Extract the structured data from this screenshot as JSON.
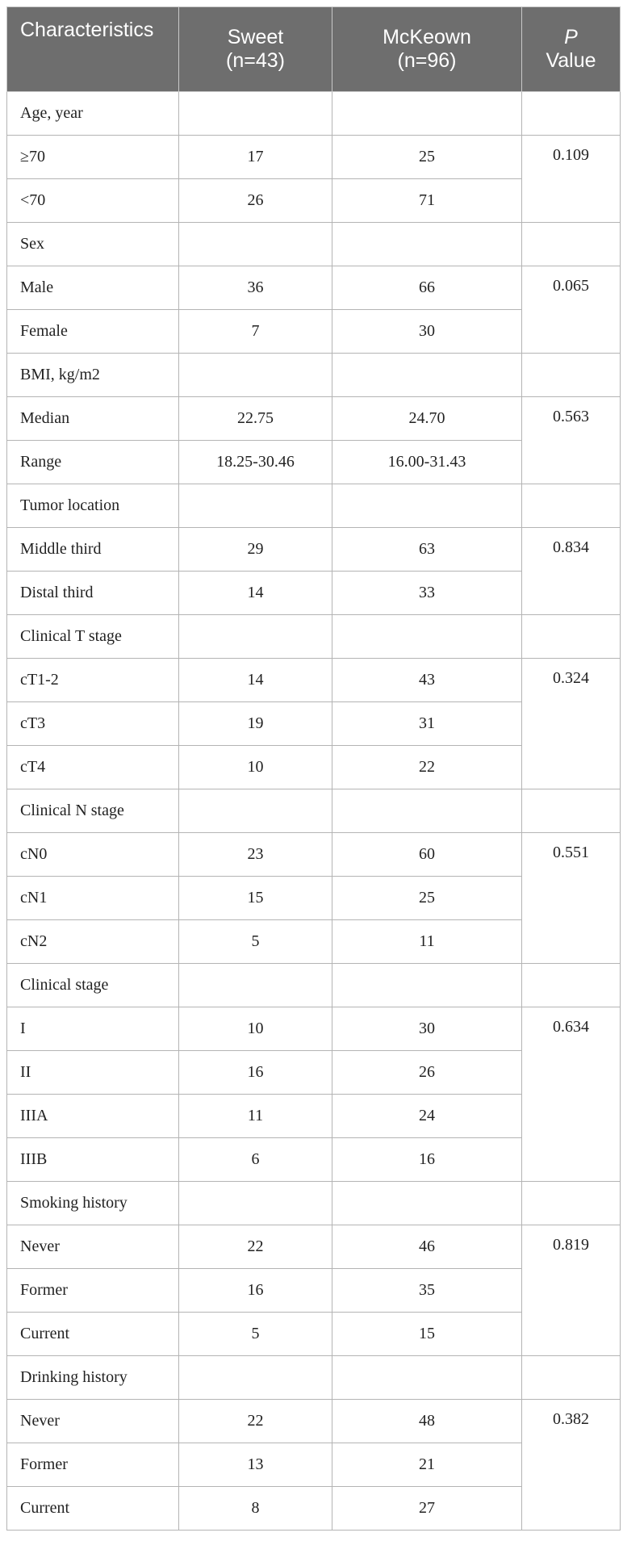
{
  "header": {
    "characteristics": "Characteristics",
    "sweet_line1": "Sweet",
    "sweet_line2": "(n=43)",
    "mckeown_line1": "McKeown",
    "mckeown_line2": "(n=96)",
    "p_letter": "P",
    "p_value": "Value"
  },
  "groups": [
    {
      "title": "Age, year",
      "p": "0.109",
      "rows": [
        {
          "label": "≥70",
          "sweet": "17",
          "mckeown": "25"
        },
        {
          "label": "<70",
          "sweet": "26",
          "mckeown": "71"
        }
      ]
    },
    {
      "title": "Sex",
      "p": "0.065",
      "rows": [
        {
          "label": "Male",
          "sweet": "36",
          "mckeown": "66"
        },
        {
          "label": "Female",
          "sweet": "7",
          "mckeown": "30"
        }
      ]
    },
    {
      "title": "BMI, kg/m2",
      "p": "0.563",
      "rows": [
        {
          "label": "Median",
          "sweet": "22.75",
          "mckeown": "24.70"
        },
        {
          "label": "Range",
          "sweet": "18.25-30.46",
          "mckeown": "16.00-31.43"
        }
      ]
    },
    {
      "title": "Tumor location",
      "p": "0.834",
      "rows": [
        {
          "label": "Middle third",
          "sweet": "29",
          "mckeown": "63"
        },
        {
          "label": "Distal third",
          "sweet": "14",
          "mckeown": "33"
        }
      ]
    },
    {
      "title": "Clinical T stage",
      "p": "0.324",
      "rows": [
        {
          "label": "cT1-2",
          "sweet": "14",
          "mckeown": "43"
        },
        {
          "label": "cT3",
          "sweet": "19",
          "mckeown": "31"
        },
        {
          "label": "cT4",
          "sweet": "10",
          "mckeown": "22"
        }
      ]
    },
    {
      "title": "Clinical N stage",
      "p": "0.551",
      "rows": [
        {
          "label": "cN0",
          "sweet": "23",
          "mckeown": "60"
        },
        {
          "label": "cN1",
          "sweet": "15",
          "mckeown": "25"
        },
        {
          "label": "cN2",
          "sweet": "5",
          "mckeown": "11"
        }
      ]
    },
    {
      "title": "Clinical stage",
      "p": "0.634",
      "rows": [
        {
          "label": "I",
          "sweet": "10",
          "mckeown": "30"
        },
        {
          "label": "II",
          "sweet": "16",
          "mckeown": "26"
        },
        {
          "label": "IIIA",
          "sweet": "11",
          "mckeown": "24"
        },
        {
          "label": "IIIB",
          "sweet": "6",
          "mckeown": "16"
        }
      ]
    },
    {
      "title": "Smoking history",
      "p": "0.819",
      "rows": [
        {
          "label": "Never",
          "sweet": "22",
          "mckeown": "46"
        },
        {
          "label": "Former",
          "sweet": "16",
          "mckeown": "35"
        },
        {
          "label": "Current",
          "sweet": "5",
          "mckeown": "15"
        }
      ]
    },
    {
      "title": "Drinking history",
      "p": "0.382",
      "rows": [
        {
          "label": "Never",
          "sweet": "22",
          "mckeown": "48"
        },
        {
          "label": "Former",
          "sweet": "13",
          "mckeown": "21"
        },
        {
          "label": "Current",
          "sweet": "8",
          "mckeown": "27"
        }
      ]
    }
  ]
}
